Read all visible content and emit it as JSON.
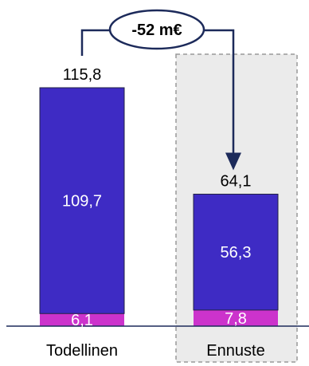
{
  "chart_data": {
    "type": "bar",
    "stacked": true,
    "categories": [
      "Todellinen",
      "Ennuste"
    ],
    "series": [
      {
        "values": [
          6.1,
          7.8
        ],
        "labels": [
          "6,1",
          "7,8"
        ],
        "color": "#cc33cc"
      },
      {
        "values": [
          109.7,
          56.3
        ],
        "labels": [
          "109,7",
          "56,3"
        ],
        "color": "#3e2bc4"
      }
    ],
    "totals": [
      115.8,
      64.1
    ],
    "total_labels": [
      "115,8",
      "64,1"
    ],
    "difference_label": "-52 m€",
    "highlight_category": "Ennuste",
    "highlight_fill": "#ebebeb",
    "highlight_border": "#999999",
    "arrow_color": "#1c2a5a",
    "baseline_color": "#1c2a5a",
    "grid": false,
    "ylim": [
      0,
      115.8
    ]
  }
}
